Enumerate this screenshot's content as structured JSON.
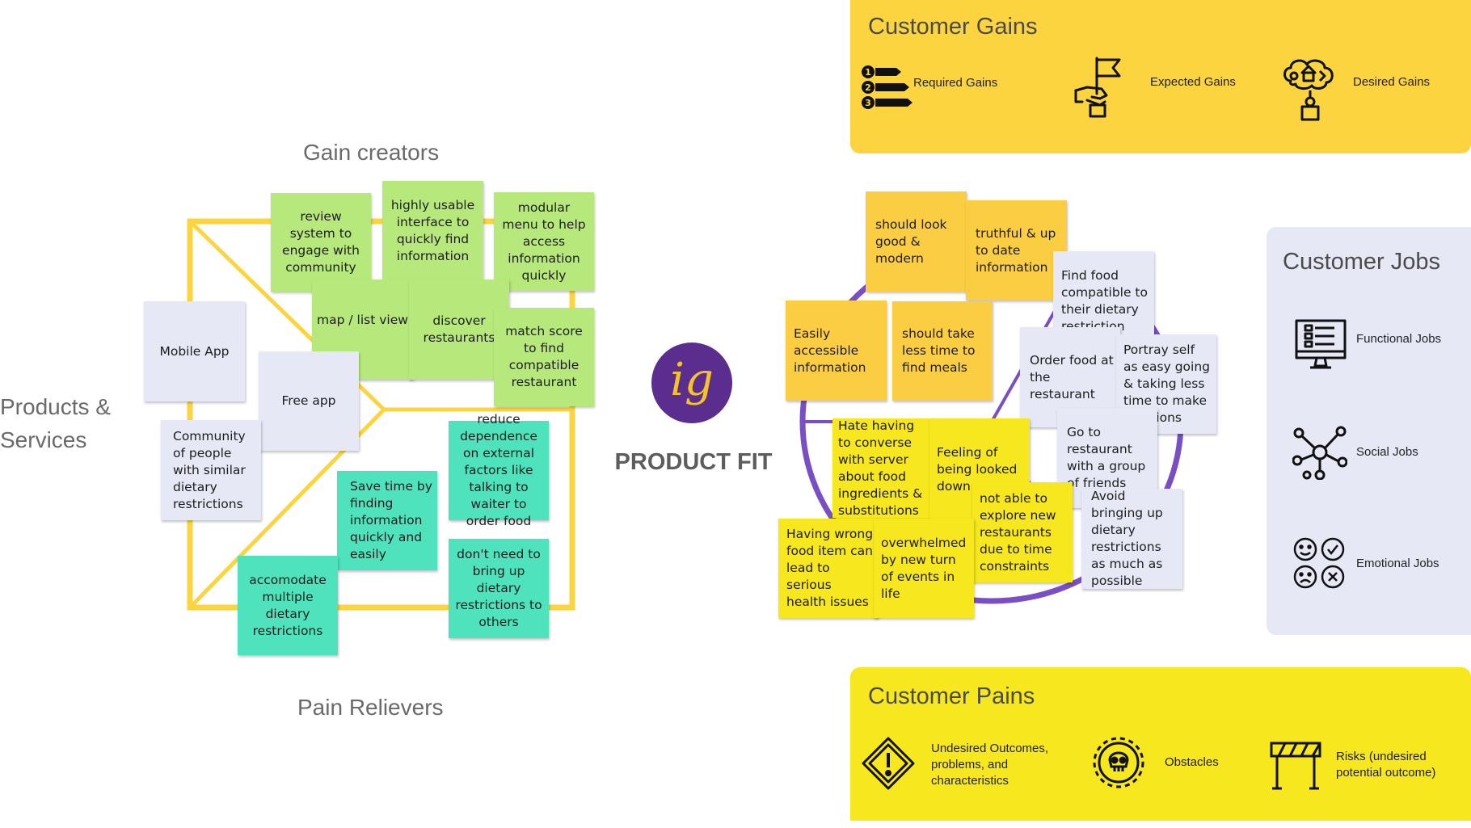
{
  "value_map": {
    "gain_creators_label": "Gain creators",
    "pain_relievers_label": "Pain Relievers",
    "products_services_label": "Products & Services",
    "gain_creators": [
      "review system to engage with community",
      "highly usable interface to quickly find information",
      "modular menu to help access information quickly",
      "map / list view",
      "discover restaurants",
      "match score to find compatible restaurant"
    ],
    "products": [
      "Mobile App",
      "Free app",
      "Community of people with similar dietary restrictions"
    ],
    "pain_relievers": [
      "reduce dependence on external factors like talking to waiter to order food",
      "Save time by finding information quickly and easily",
      "don't need to bring up dietary restrictions to others",
      "accomodate multiple dietary restrictions"
    ]
  },
  "center": {
    "logo_text": "ig",
    "title": "PRODUCT FIT"
  },
  "customer_profile": {
    "gains": [
      "should look good & modern",
      "truthful & up to date information",
      "Easily accessible information",
      "should take less time to find meals"
    ],
    "jobs": [
      "Find food compatible to their dietary restriction",
      "Order food at the restaurant",
      "Portray self as easy going & taking less time to make decisions",
      "Go to restaurant with a group of friends",
      "Avoid bringing up dietary restrictions as much as possible"
    ],
    "pains": [
      "Hate having to converse with server about food ingredients & substitutions",
      "Feeling of being looked down upon",
      "not able to explore new restaurants due to time constraints",
      "Having wrong food item can lead to serious health issues",
      "overwhelmed by new turn of events in life"
    ]
  },
  "panels": {
    "gains": {
      "title": "Customer Gains",
      "items": [
        {
          "label": "Required Gains",
          "icon": "ranked-list-icon"
        },
        {
          "label": "Expected Gains",
          "icon": "flag-handshake-icon"
        },
        {
          "label": "Desired Gains",
          "icon": "thought-bubble-icon"
        }
      ]
    },
    "jobs": {
      "title": "Customer Jobs",
      "items": [
        {
          "label": "Functional Jobs",
          "icon": "checklist-monitor-icon"
        },
        {
          "label": "Social Jobs",
          "icon": "network-icon"
        },
        {
          "label": "Emotional Jobs",
          "icon": "emotion-faces-icon"
        }
      ]
    },
    "pains": {
      "title": "Customer Pains",
      "items": [
        {
          "label": "Undesired Outcomes, problems, and characteristics",
          "icon": "warning-diamond-icon"
        },
        {
          "label": "Obstacles",
          "icon": "skull-gear-icon"
        },
        {
          "label": "Risks (undesired potential outcome)",
          "icon": "barrier-icon"
        }
      ]
    }
  },
  "colors": {
    "frame": "#fbd440",
    "circle": "#7a4fc4",
    "gains_panel": "#fbd440",
    "pains_panel": "#f6e71e",
    "jobs_panel": "#e6e8f6",
    "logo": "#5a2d8f"
  }
}
